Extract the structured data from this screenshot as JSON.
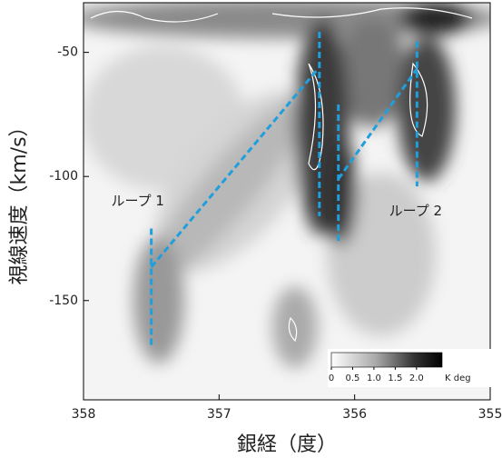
{
  "chart_data": {
    "type": "image",
    "xlabel": "銀経（度）",
    "ylabel": "視線速度（km/s）",
    "xlim": [
      358,
      355
    ],
    "xticks": [
      358,
      357,
      356,
      355
    ],
    "ylim": [
      -190,
      -30
    ],
    "yticks": [
      -50,
      -100,
      -150
    ],
    "line_color": "#1f9fdc",
    "lines": [
      {
        "x": [
          357.5,
          357.5
        ],
        "y": [
          -121,
          -168
        ]
      },
      {
        "x": [
          357.5,
          356.27
        ],
        "y": [
          -136.5,
          -56.6
        ]
      },
      {
        "x": [
          356.26,
          356.26
        ],
        "y": [
          -41.7,
          -116
        ]
      },
      {
        "x": [
          356.12,
          356.12
        ],
        "y": [
          -71,
          -126.7
        ]
      },
      {
        "x": [
          356.12,
          355.54
        ],
        "y": [
          -101,
          -56.6
        ]
      },
      {
        "x": [
          355.54,
          355.54
        ],
        "y": [
          -45.6,
          -104
        ]
      }
    ],
    "annotations": [
      {
        "text": "ループ 1",
        "x": 357.6,
        "y": -110
      },
      {
        "text": "ループ 2",
        "x": 355.55,
        "y": -114
      }
    ],
    "colorbar": {
      "lim": [
        0,
        2.6
      ],
      "ticks": [
        0,
        0.5,
        {
          "value": 1,
          "label": "1.0"
        },
        1.5,
        {
          "value": 2,
          "label": "2.0"
        }
      ],
      "unit": "K deg"
    }
  }
}
